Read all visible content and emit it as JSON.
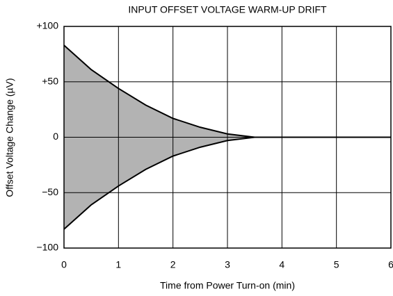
{
  "chart_data": {
    "type": "area",
    "title": "INPUT OFFSET VOLTAGE WARM-UP DRIFT",
    "x_label": "Time from Power Turn-on (min)",
    "y_label": "Offset Voltage Change (µV)",
    "x": [
      0,
      0.5,
      1,
      1.5,
      2,
      2.5,
      3,
      3.5,
      4,
      5,
      6
    ],
    "series": [
      {
        "color": "#b3b3b3",
        "values": [
          83,
          61,
          44,
          29,
          17,
          9,
          3,
          0,
          0,
          0,
          0
        ]
      },
      {
        "color": "#b3b3b3",
        "values": [
          -83,
          -61,
          -44,
          -29,
          -17,
          -9,
          -3,
          0,
          0,
          0,
          0
        ]
      }
    ],
    "xlim": [
      0,
      6
    ],
    "xticks": [
      0,
      1,
      2,
      3,
      4,
      5,
      6
    ],
    "ylim": [
      -100,
      100
    ],
    "yticks": [
      {
        "value": -100,
        "label": "−100"
      },
      {
        "value": -50,
        "label": "−50"
      },
      0,
      {
        "value": 50,
        "label": "+50"
      },
      {
        "value": 100,
        "label": "+100"
      }
    ],
    "grid": true
  }
}
